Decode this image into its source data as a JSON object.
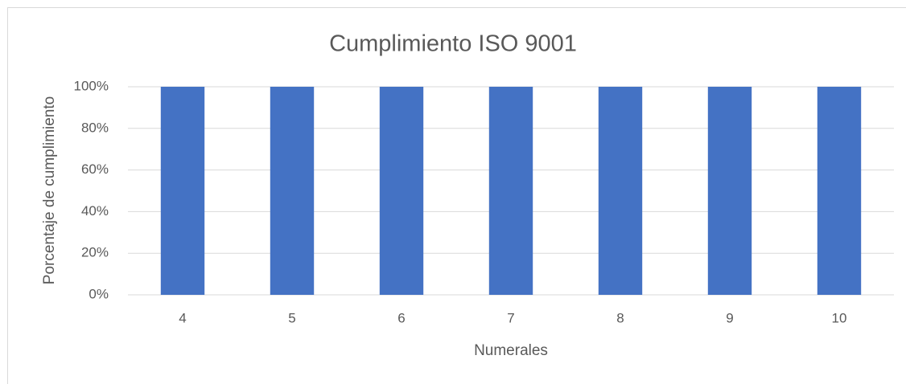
{
  "chart_data": {
    "type": "bar",
    "title": "Cumplimiento ISO 9001",
    "x_label": "Numerales",
    "y_label": "Porcentaje de cumplimiento",
    "categories": [
      "4",
      "5",
      "6",
      "7",
      "8",
      "9",
      "10"
    ],
    "values": [
      100,
      100,
      100,
      100,
      100,
      100,
      100
    ],
    "color": "#4472c4",
    "ylim": [
      0,
      100
    ],
    "yticks": [
      {
        "value": 0,
        "label": "0%"
      },
      {
        "value": 20,
        "label": "20%"
      },
      {
        "value": 40,
        "label": "40%"
      },
      {
        "value": 60,
        "label": "60%"
      },
      {
        "value": 80,
        "label": "80%"
      },
      {
        "value": 100,
        "label": "100%"
      }
    ],
    "grid": true
  }
}
